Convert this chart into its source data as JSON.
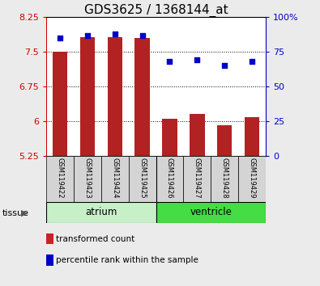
{
  "title": "GDS3625 / 1368144_at",
  "samples": [
    "GSM119422",
    "GSM119423",
    "GSM119424",
    "GSM119425",
    "GSM119426",
    "GSM119427",
    "GSM119428",
    "GSM119429"
  ],
  "bar_values": [
    7.5,
    7.82,
    7.82,
    7.8,
    6.05,
    6.15,
    5.92,
    6.08
  ],
  "dot_values": [
    85,
    87,
    88,
    87,
    68,
    69,
    65,
    68
  ],
  "ylim_left": [
    5.25,
    8.25
  ],
  "yticks_left": [
    5.25,
    6.0,
    6.75,
    7.5,
    8.25
  ],
  "ytick_labels_left": [
    "5.25",
    "6",
    "6.75",
    "7.5",
    "8.25"
  ],
  "ylim_right": [
    0,
    100
  ],
  "yticks_right": [
    0,
    25,
    50,
    75,
    100
  ],
  "ytick_labels_right": [
    "0",
    "25",
    "50",
    "75",
    "100%"
  ],
  "bar_color": "#b22222",
  "dot_color": "#0000cc",
  "bar_bottom": 5.25,
  "atrium_color": "#c8f0c8",
  "ventricle_color": "#44dd44",
  "sample_box_color": "#d4d4d4",
  "legend_items": [
    {
      "color": "#cc2222",
      "label": "transformed count"
    },
    {
      "color": "#0000cc",
      "label": "percentile rank within the sample"
    }
  ],
  "background_color": "#ebebeb",
  "plot_bg": "#ffffff",
  "title_fontsize": 11,
  "tick_fontsize": 8,
  "label_fontsize": 9
}
